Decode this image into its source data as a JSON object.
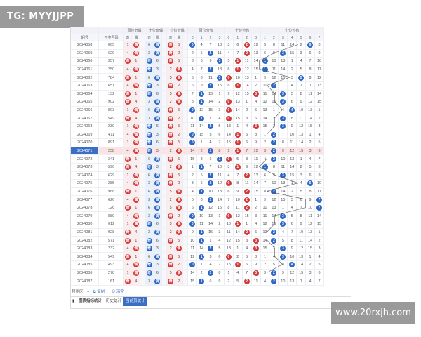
{
  "watermarks": {
    "top_left": "TG: MYYJJPP",
    "bottom_right": "www.20rxjh.com"
  },
  "colors": {
    "red_ball": "#d23a3a",
    "blue_ball": "#2d67c4",
    "highlight_row": "#fbe3e3",
    "issue_highlight": "#3b6fc4"
  },
  "header": {
    "group_labels": [
      "百位奇偶",
      "十位奇偶",
      "个位奇偶",
      "百位分布",
      "十位分布",
      "个位分布"
    ],
    "col_issue": "期号",
    "col_number": "开奖号码",
    "sub_labels": [
      "奇",
      "偶",
      "奇",
      "偶",
      "奇",
      "偶",
      "0",
      "1",
      "2",
      "3",
      "0",
      "1",
      "2",
      "3",
      "1",
      "2",
      "3",
      "4",
      "5",
      "6",
      "7"
    ]
  },
  "rows": [
    {
      "issue": "2024058",
      "num": "065"
    },
    {
      "issue": "2024059",
      "num": "629"
    },
    {
      "issue": "2024060",
      "num": "357"
    },
    {
      "issue": "2024061",
      "num": "250"
    },
    {
      "issue": "2024062",
      "num": "784"
    },
    {
      "issue": "2024063",
      "num": "651"
    },
    {
      "issue": "2024064",
      "num": "132"
    },
    {
      "issue": "2024065",
      "num": "902"
    },
    {
      "issue": "2024066",
      "num": "803"
    },
    {
      "issue": "2024067",
      "num": "549"
    },
    {
      "issue": "2024068",
      "num": "239"
    },
    {
      "issue": "2024069",
      "num": "411"
    },
    {
      "issue": "2024070",
      "num": "891"
    },
    {
      "issue": "2024071",
      "num": "258"
    },
    {
      "issue": "2024072",
      "num": "341"
    },
    {
      "issue": "2024073",
      "num": "590"
    },
    {
      "issue": "2024074",
      "num": "629"
    },
    {
      "issue": "2024075",
      "num": "285"
    },
    {
      "issue": "2024076",
      "num": "968"
    },
    {
      "issue": "2024077",
      "num": "626"
    },
    {
      "issue": "2024078",
      "num": "126"
    },
    {
      "issue": "2024079",
      "num": "889"
    },
    {
      "issue": "2024080",
      "num": "012"
    },
    {
      "issue": "2024081",
      "num": "928"
    },
    {
      "issue": "2024082",
      "num": "571"
    },
    {
      "issue": "2024083",
      "num": "232"
    },
    {
      "issue": "2024084",
      "num": "549"
    },
    {
      "issue": "2024085",
      "num": "493"
    },
    {
      "issue": "2024086",
      "num": "278"
    },
    {
      "issue": "2024087",
      "num": "161"
    }
  ],
  "highlight_issue": "2024071",
  "footer": {
    "predict_label": "预测区",
    "add_icon": "+",
    "copy_label": "复制",
    "clear_label": "清空",
    "tabs": [
      {
        "label": "图表指标统计",
        "active": false,
        "bold": true
      },
      {
        "label": "历史统计",
        "active": false,
        "bold": false
      },
      {
        "label": "当前页统计",
        "active": true,
        "bold": false
      }
    ]
  }
}
